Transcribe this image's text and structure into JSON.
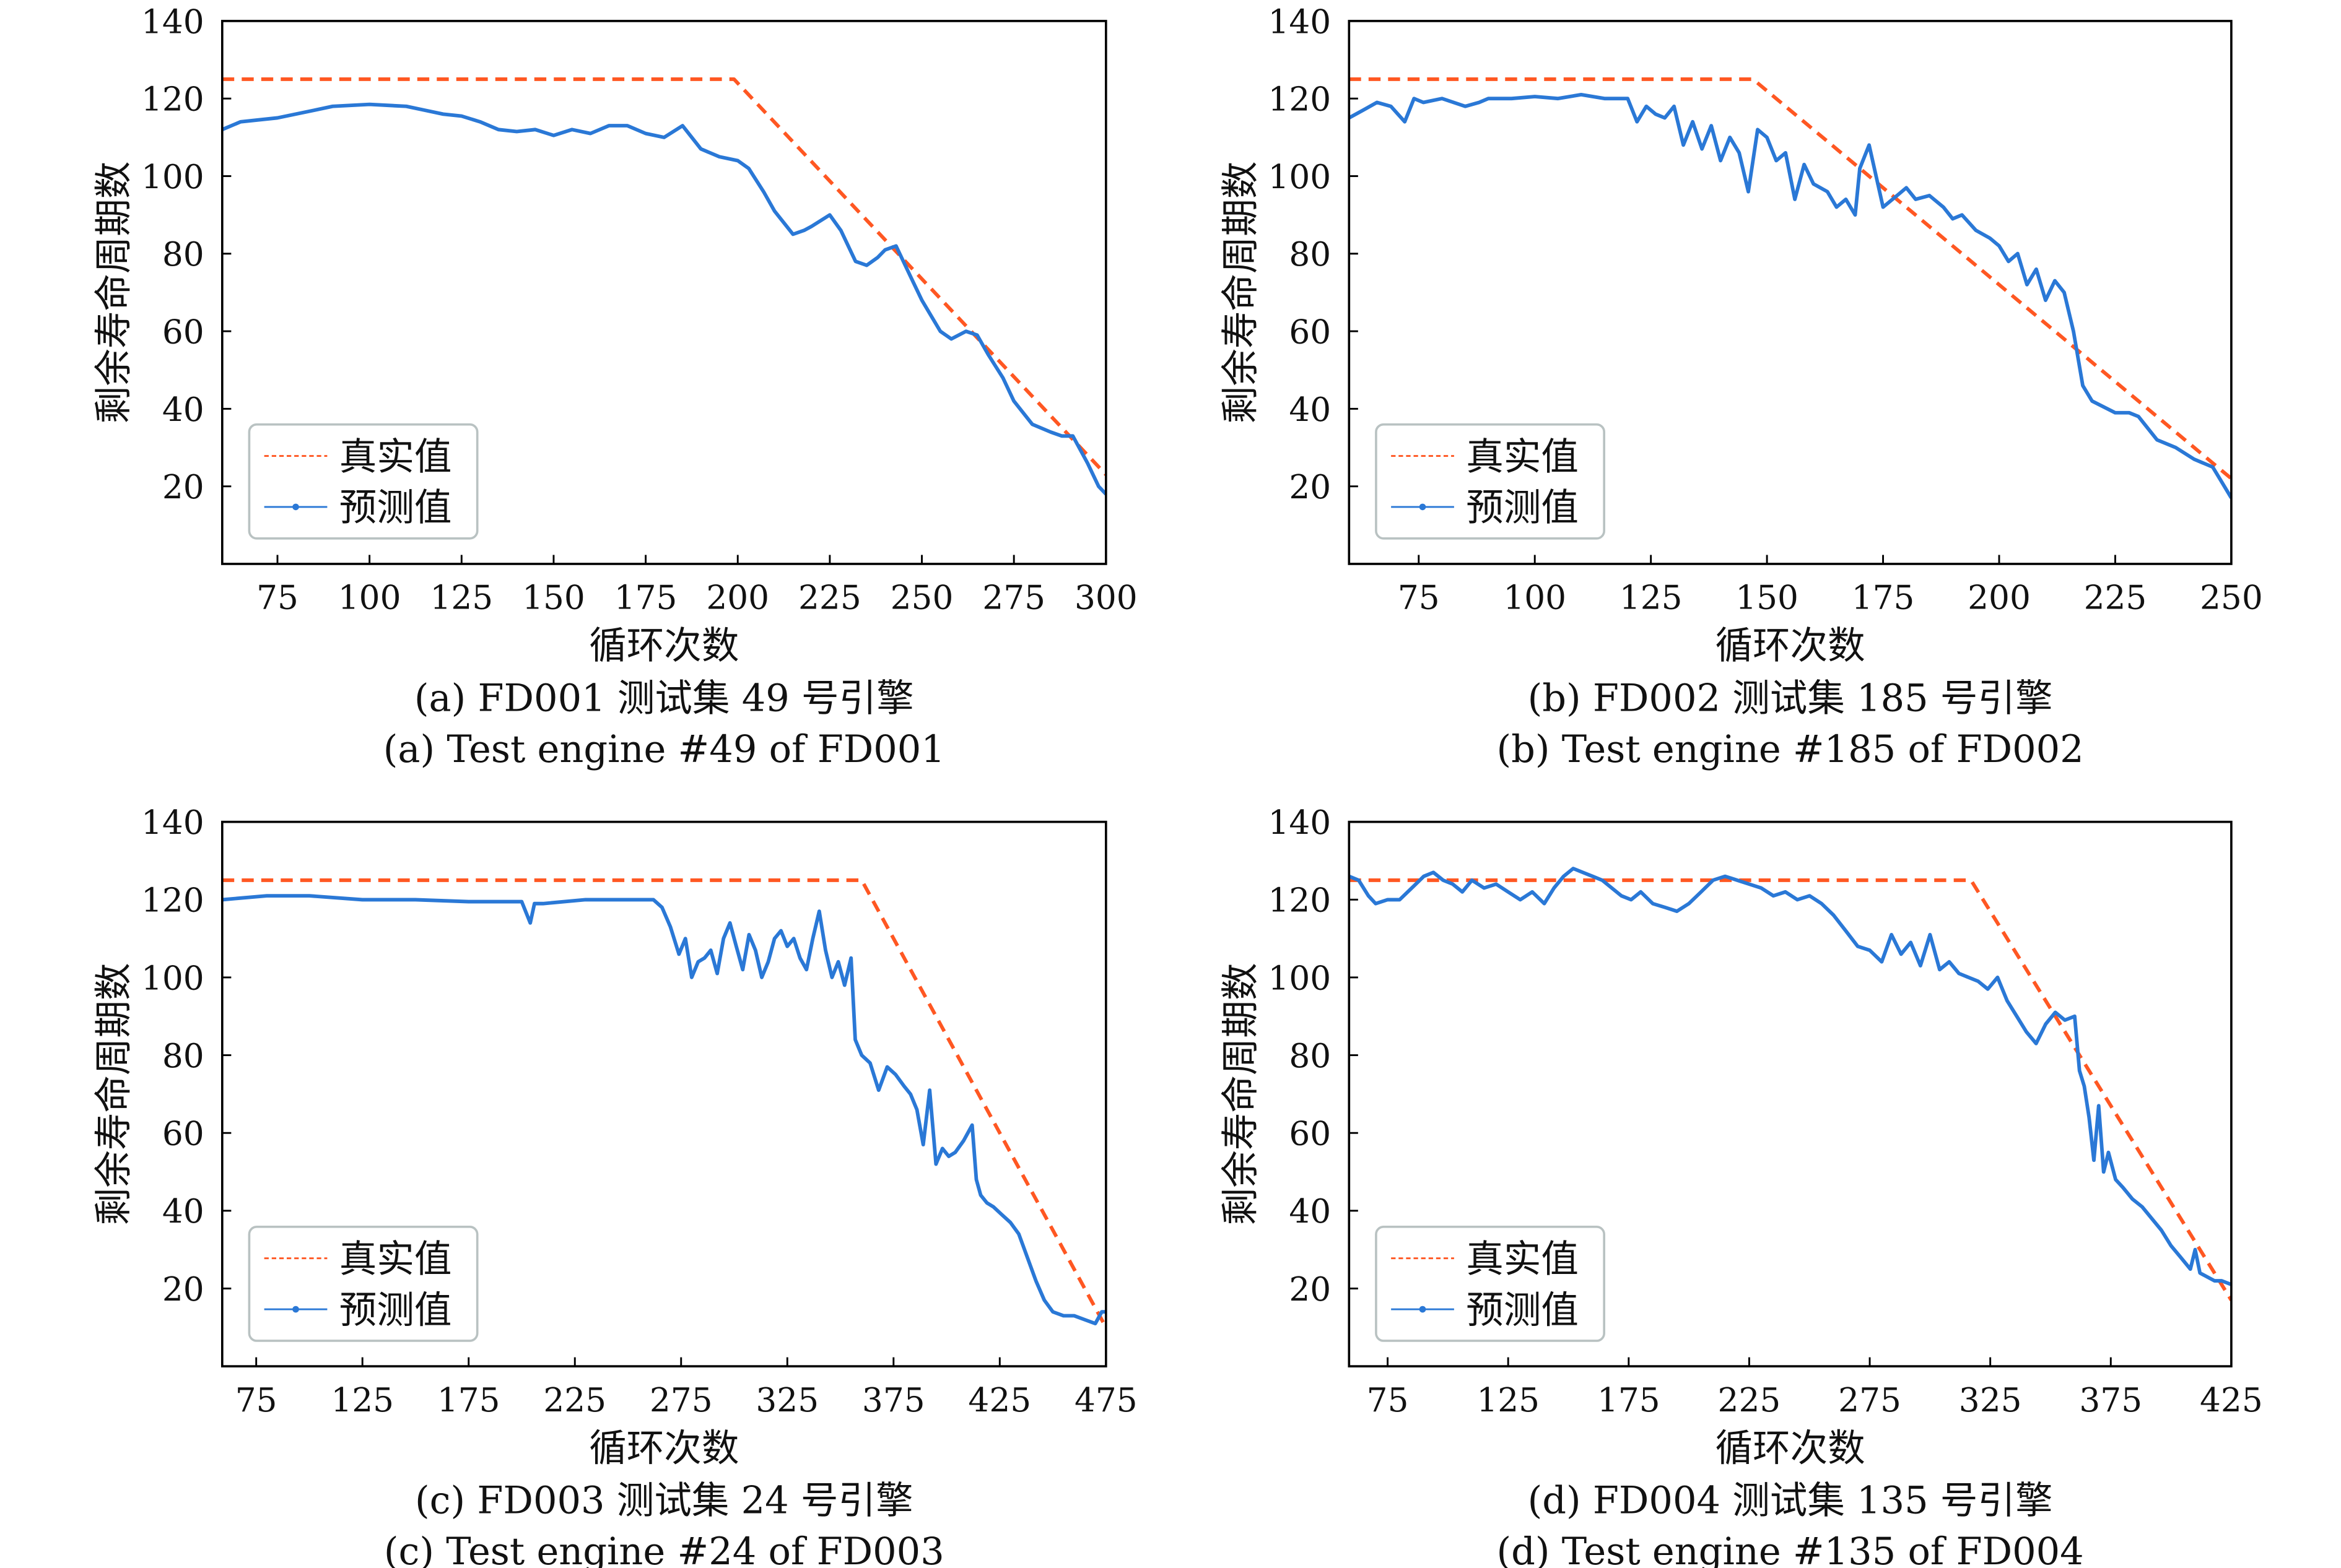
{
  "colors": {
    "true": "#ff5722",
    "pred": "#2a78d6",
    "legend_border": "#b9c2c2"
  },
  "chart_data": [
    {
      "type": "line",
      "caption_cn": "(a) FD001 测试集 49 号引擎",
      "caption_en": "(a) Test engine #49 of FD001",
      "xlabel": "循环次数",
      "ylabel": "剩余寿命周期数",
      "xlim": [
        60,
        300
      ],
      "ylim": [
        0,
        140
      ],
      "xticks": [
        75,
        100,
        125,
        150,
        175,
        200,
        225,
        250,
        275,
        300
      ],
      "yticks": [
        20,
        40,
        60,
        80,
        100,
        120,
        140
      ],
      "legend": {
        "placement": "lower-left",
        "entries": [
          "真实值",
          "预测值"
        ]
      },
      "series": [
        {
          "name": "真实值",
          "style": "dashed",
          "x": [
            60,
            199,
            300
          ],
          "y": [
            125,
            125,
            23
          ]
        },
        {
          "name": "预测值",
          "style": "solid",
          "x": [
            60,
            65,
            75,
            85,
            90,
            100,
            110,
            115,
            120,
            125,
            130,
            135,
            140,
            145,
            150,
            155,
            160,
            165,
            170,
            175,
            180,
            185,
            190,
            195,
            200,
            203,
            207,
            210,
            215,
            218,
            220,
            225,
            228,
            232,
            235,
            238,
            240,
            243,
            247,
            250,
            255,
            258,
            262,
            265,
            268,
            272,
            275,
            280,
            285,
            288,
            291,
            295,
            298,
            300
          ],
          "y": [
            112,
            114,
            115,
            117,
            118,
            118.5,
            118,
            117,
            116,
            115.5,
            114,
            112,
            111.5,
            112,
            110.5,
            112,
            111,
            113,
            113,
            111,
            110,
            113,
            107,
            105,
            104,
            102,
            96,
            91,
            85,
            86,
            87,
            90,
            86,
            78,
            77,
            79,
            81,
            82,
            74,
            68,
            60,
            58,
            60,
            59,
            54,
            48,
            42,
            36,
            34,
            33,
            33,
            26,
            20,
            18
          ]
        }
      ]
    },
    {
      "type": "line",
      "caption_cn": "(b) FD002 测试集 185 号引擎",
      "caption_en": "(b) Test engine #185 of FD002",
      "xlabel": "循环次数",
      "ylabel": "剩余寿命周期数",
      "xlim": [
        60,
        250
      ],
      "ylim": [
        0,
        140
      ],
      "xticks": [
        75,
        100,
        125,
        150,
        175,
        200,
        225,
        250
      ],
      "yticks": [
        20,
        40,
        60,
        80,
        100,
        120,
        140
      ],
      "legend": {
        "placement": "lower-left",
        "entries": [
          "真实值",
          "预测值"
        ]
      },
      "series": [
        {
          "name": "真实值",
          "style": "dashed",
          "x": [
            60,
            147,
            250
          ],
          "y": [
            125,
            125,
            22
          ]
        },
        {
          "name": "预测值",
          "style": "solid",
          "x": [
            60,
            63,
            66,
            69,
            72,
            74,
            76,
            80,
            85,
            88,
            90,
            95,
            100,
            105,
            110,
            115,
            120,
            122,
            124,
            126,
            128,
            130,
            132,
            134,
            136,
            138,
            140,
            142,
            144,
            146,
            148,
            150,
            152,
            154,
            156,
            158,
            160,
            163,
            165,
            167,
            169,
            170,
            172,
            175,
            178,
            180,
            182,
            185,
            188,
            190,
            192,
            195,
            198,
            200,
            202,
            204,
            206,
            208,
            210,
            212,
            214,
            216,
            218,
            220,
            225,
            228,
            230,
            234,
            238,
            242,
            246,
            248,
            250
          ],
          "y": [
            115,
            117,
            119,
            118,
            114,
            120,
            119,
            120,
            118,
            119,
            120,
            120,
            120.5,
            120,
            121,
            120,
            120,
            114,
            118,
            116,
            115,
            118,
            108,
            114,
            107,
            113,
            104,
            110,
            106,
            96,
            112,
            110,
            104,
            106,
            94,
            103,
            98,
            96,
            92,
            94,
            90,
            102,
            108,
            92,
            95,
            97,
            94,
            95,
            92,
            89,
            90,
            86,
            84,
            82,
            78,
            80,
            72,
            76,
            68,
            73,
            70,
            60,
            46,
            42,
            39,
            39,
            38,
            32,
            30,
            27,
            25,
            21,
            17
          ]
        }
      ]
    },
    {
      "type": "line",
      "caption_cn": "(c) FD003 测试集 24 号引擎",
      "caption_en": "(c) Test engine #24 of FD003",
      "xlabel": "循环次数",
      "ylabel": "剩余寿命周期数",
      "xlim": [
        59,
        475
      ],
      "ylim": [
        0,
        140
      ],
      "xticks": [
        75,
        125,
        175,
        225,
        275,
        325,
        375,
        425,
        475
      ],
      "yticks": [
        20,
        40,
        60,
        80,
        100,
        120,
        140
      ],
      "legend": {
        "placement": "lower-left",
        "entries": [
          "真实值",
          "预测值"
        ]
      },
      "series": [
        {
          "name": "真实值",
          "style": "dashed",
          "x": [
            59,
            360,
            475
          ],
          "y": [
            125,
            125,
            10
          ]
        },
        {
          "name": "预测值",
          "style": "solid",
          "x": [
            59,
            80,
            100,
            125,
            150,
            175,
            200,
            204,
            206,
            210,
            230,
            250,
            262,
            266,
            270,
            274,
            277,
            280,
            283,
            286,
            289,
            292,
            295,
            298,
            301,
            304,
            307,
            310,
            313,
            316,
            319,
            322,
            325,
            328,
            331,
            334,
            337,
            340,
            343,
            346,
            349,
            352,
            355,
            357,
            360,
            364,
            368,
            372,
            376,
            380,
            383,
            386,
            389,
            392,
            395,
            398,
            401,
            404,
            408,
            412,
            414,
            416,
            419,
            422,
            426,
            430,
            434,
            438,
            442,
            446,
            450,
            455,
            460,
            465,
            470,
            473,
            475
          ],
          "y": [
            120,
            121,
            121,
            120,
            120,
            119.5,
            119.5,
            114,
            119,
            119,
            120,
            120,
            120,
            118,
            113,
            106,
            110,
            100,
            104,
            105,
            107,
            101,
            110,
            114,
            108,
            102,
            111,
            107,
            100,
            104,
            110,
            112,
            108,
            110,
            105,
            102,
            110,
            117,
            107,
            100,
            104,
            98,
            105,
            84,
            80,
            78,
            71,
            77,
            75,
            72,
            70,
            66,
            57,
            71,
            52,
            56,
            54,
            55,
            58,
            62,
            48,
            44,
            42,
            41,
            39,
            37,
            34,
            28,
            22,
            17,
            14,
            13,
            13,
            12,
            11,
            14,
            14
          ]
        }
      ]
    },
    {
      "type": "line",
      "caption_cn": "(d) FD004 测试集 135 号引擎",
      "caption_en": "(d) Test engine #135 of FD004",
      "xlabel": "循环次数",
      "ylabel": "剩余寿命周期数",
      "xlim": [
        59,
        425
      ],
      "ylim": [
        0,
        140
      ],
      "xticks": [
        75,
        125,
        175,
        225,
        275,
        325,
        375,
        425
      ],
      "yticks": [
        20,
        40,
        60,
        80,
        100,
        120,
        140
      ],
      "legend": {
        "placement": "lower-left",
        "entries": [
          "真实值",
          "预测值"
        ]
      },
      "series": [
        {
          "name": "真实值",
          "style": "dashed",
          "x": [
            59,
            317,
            425
          ],
          "y": [
            125,
            125,
            17
          ]
        },
        {
          "name": "预测值",
          "style": "solid",
          "x": [
            59,
            63,
            67,
            70,
            75,
            80,
            85,
            90,
            94,
            98,
            102,
            106,
            110,
            115,
            120,
            125,
            130,
            135,
            140,
            144,
            148,
            152,
            156,
            160,
            164,
            168,
            172,
            176,
            180,
            185,
            190,
            195,
            200,
            205,
            210,
            215,
            220,
            225,
            230,
            235,
            240,
            245,
            250,
            255,
            260,
            265,
            270,
            275,
            280,
            284,
            288,
            292,
            296,
            300,
            304,
            308,
            312,
            316,
            320,
            324,
            328,
            332,
            336,
            340,
            344,
            348,
            352,
            356,
            360,
            362,
            364,
            366,
            368,
            370,
            372,
            374,
            377,
            380,
            384,
            388,
            392,
            396,
            400,
            404,
            408,
            410,
            412,
            415,
            418,
            421,
            425
          ],
          "y": [
            126,
            125,
            121,
            119,
            120,
            120,
            123,
            126,
            127,
            125,
            124,
            122,
            125,
            123,
            124,
            122,
            120,
            122,
            119,
            123,
            126,
            128,
            127,
            126,
            125,
            123,
            121,
            120,
            122,
            119,
            118,
            117,
            119,
            122,
            125,
            126,
            125,
            124,
            123,
            121,
            122,
            120,
            121,
            119,
            116,
            112,
            108,
            107,
            104,
            111,
            106,
            109,
            103,
            111,
            102,
            104,
            101,
            100,
            99,
            97,
            100,
            94,
            90,
            86,
            83,
            88,
            91,
            89,
            90,
            76,
            72,
            64,
            53,
            67,
            50,
            55,
            48,
            46,
            43,
            41,
            38,
            35,
            31,
            28,
            25,
            30,
            24,
            23,
            22,
            22,
            21
          ]
        }
      ]
    }
  ]
}
